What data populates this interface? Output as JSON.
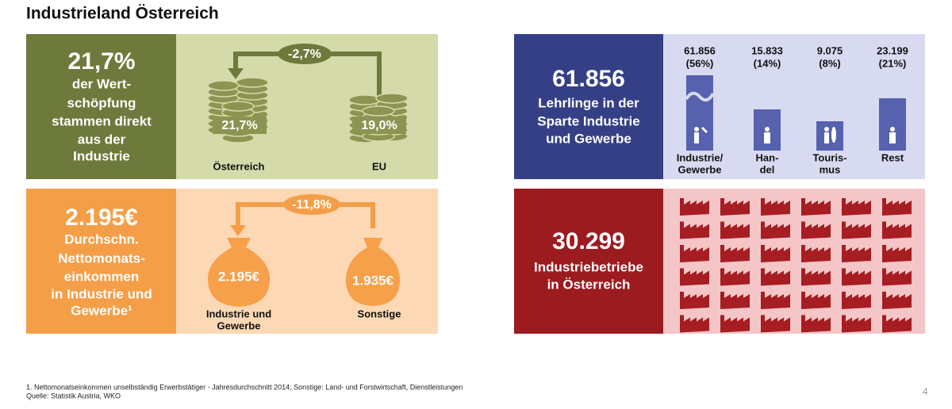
{
  "header": {
    "title": "Industrieland Österreich"
  },
  "panels": [
    {
      "headline": "21,7%",
      "text_lines": [
        "der Wert-",
        "schöpfung",
        "stammen direkt",
        "aus der",
        "Industrie"
      ],
      "change": "-2,7%",
      "items": [
        {
          "value": "21,7%",
          "label_lines": [
            "Österreich"
          ]
        },
        {
          "value": "19,0%",
          "label_lines": [
            "EU"
          ]
        }
      ]
    },
    {
      "headline": "2.195€",
      "text_lines": [
        "Durchschn.",
        "Nettomonats-",
        "einkommen",
        "in Industrie und",
        "Gewerbe¹"
      ],
      "change": "-11,8%",
      "items": [
        {
          "value": "2.195€",
          "label_lines": [
            "Industrie und",
            "Gewerbe"
          ]
        },
        {
          "value": "1.935€",
          "label_lines": [
            "Sonstige"
          ]
        }
      ]
    },
    {
      "headline": "61.856",
      "text_lines": [
        "Lehrlinge in der",
        "Sparte Industrie",
        "und Gewerbe"
      ],
      "items": [
        {
          "value": "61.856",
          "share": "(56%)",
          "label_lines": [
            "Industrie/",
            "Gewerbe"
          ]
        },
        {
          "value": "15.833",
          "share": "(14%)",
          "label_lines": [
            "Han-",
            "del"
          ]
        },
        {
          "value": "9.075",
          "share": "(8%)",
          "label_lines": [
            "Touris-",
            "mus"
          ]
        },
        {
          "value": "23.199",
          "share": "(21%)",
          "label_lines": [
            "Rest"
          ]
        }
      ]
    },
    {
      "headline": "30.299",
      "text_lines": [
        "Industriebetriebe",
        "in Österreich"
      ]
    }
  ],
  "footer": {
    "lines": [
      "1. Nettomonatseinkommen unselbständig Erwerbstätiger - Jahresdurchschnitt 2014; Sonstige: Land- und Forstwirtschaft, Dienstleistungen",
      "Quelle: Statistik Austria, WKO"
    ],
    "page": "4"
  }
}
